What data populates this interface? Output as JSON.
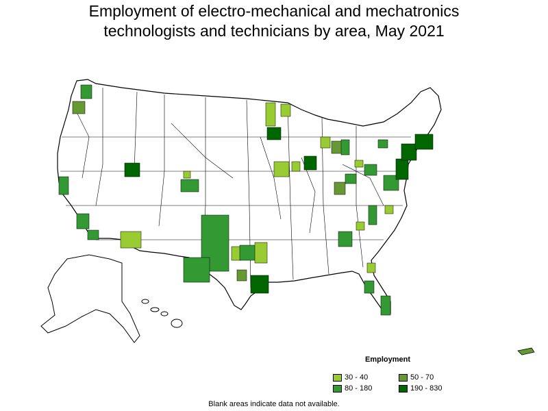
{
  "title_line1": "Employment of electro-mechanical and mechatronics",
  "title_line2": "technologists and technicians by area, May 2021",
  "legend": {
    "title": "Employment",
    "items": [
      {
        "label": "30 - 40",
        "color": "#99cc33"
      },
      {
        "label": "50 - 70",
        "color": "#669933"
      },
      {
        "label": "80 - 180",
        "color": "#339933"
      },
      {
        "label": "190 - 830",
        "color": "#006600"
      }
    ]
  },
  "note": "Blank areas indicate data not available."
}
